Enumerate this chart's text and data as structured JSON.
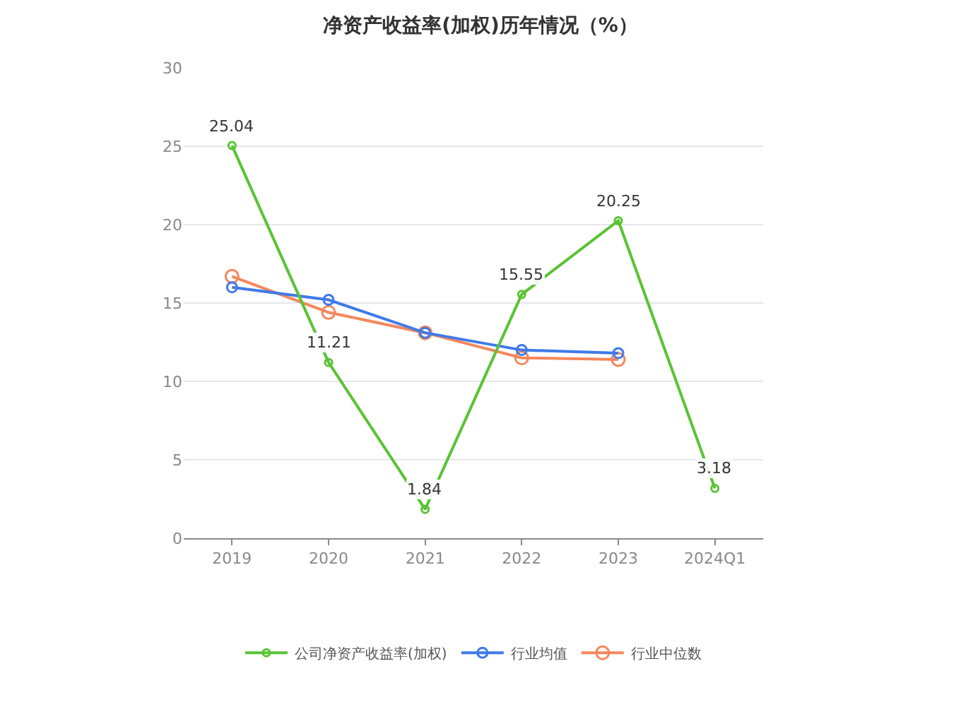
{
  "chart_data": {
    "type": "line",
    "title": "净资产收益率(加权)历年情况（%）",
    "categories": [
      "2019",
      "2020",
      "2021",
      "2022",
      "2023",
      "2024Q1"
    ],
    "series": [
      {
        "name": "公司净资产收益率(加权)",
        "color": "#5ac334",
        "values": [
          25.04,
          11.21,
          1.84,
          15.55,
          20.25,
          3.18
        ],
        "value_labels": [
          "25.04",
          "11.21",
          "1.84",
          "15.55",
          "20.25",
          "3.18"
        ]
      },
      {
        "name": "行业均值",
        "color": "#3f7ae8",
        "values": [
          16.0,
          15.2,
          13.1,
          12.0,
          11.8,
          null
        ]
      },
      {
        "name": "行业中位数",
        "color": "#f5875c",
        "values": [
          16.7,
          14.4,
          13.1,
          11.5,
          11.4,
          null
        ]
      }
    ],
    "ylim": [
      0,
      30
    ],
    "yticks": [
      0,
      5,
      10,
      15,
      20,
      25,
      30
    ],
    "grid": "y",
    "legend": "bottom",
    "marker": "circle",
    "line_style": "solid"
  }
}
